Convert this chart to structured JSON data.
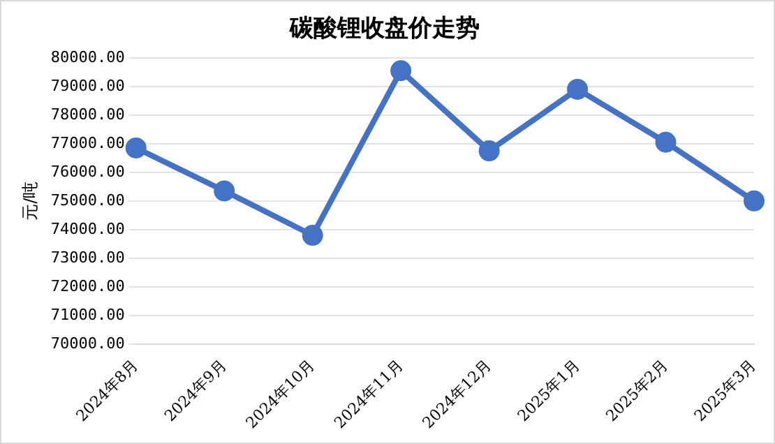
{
  "chart_data": {
    "type": "line",
    "title": "碳酸锂收盘价走势",
    "ylabel": "元/吨",
    "categories": [
      "2024年8月",
      "2024年9月",
      "2024年10月",
      "2024年11月",
      "2024年12月",
      "2025年1月",
      "2025年2月",
      "2025年3月"
    ],
    "series": [
      {
        "color": "#4472c4",
        "values": [
          76850,
          75350,
          73800,
          79550,
          76750,
          78900,
          77050,
          75000
        ]
      }
    ],
    "ylim": [
      70000,
      80000
    ],
    "yticks": [
      {
        "value": 70000,
        "label": "70000.00"
      },
      {
        "value": 71000,
        "label": "71000.00"
      },
      {
        "value": 72000,
        "label": "72000.00"
      },
      {
        "value": 73000,
        "label": "73000.00"
      },
      {
        "value": 74000,
        "label": "74000.00"
      },
      {
        "value": 75000,
        "label": "75000.00"
      },
      {
        "value": 76000,
        "label": "76000.00"
      },
      {
        "value": 77000,
        "label": "77000.00"
      },
      {
        "value": 78000,
        "label": "78000.00"
      },
      {
        "value": 79000,
        "label": "79000.00"
      },
      {
        "value": 80000,
        "label": "80000.00"
      }
    ],
    "grid": "y",
    "legend": false,
    "marker": "circle",
    "line_style": "solid"
  }
}
